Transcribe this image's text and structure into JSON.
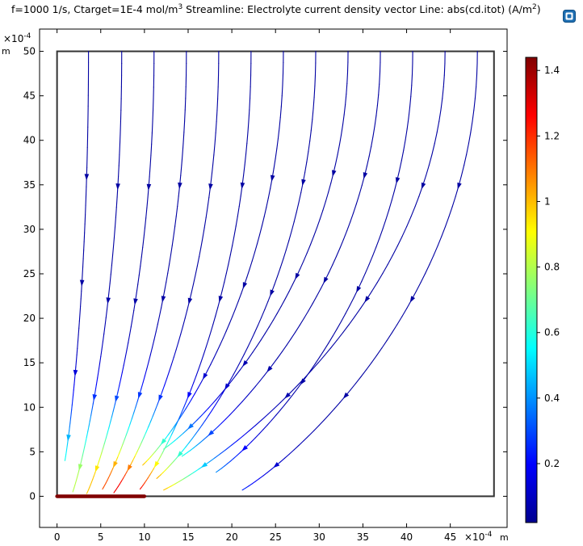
{
  "title": {
    "part1": "f=1000 1/s, Ctarget=1E-4 mol/m",
    "part1_sup": "3",
    "part2": "   Streamline: Electrolyte current density vector  Line: abs(cd.itot) (A/m",
    "part2_sup": "2",
    "part3": ")"
  },
  "logo_icon": "comsol-logo-icon",
  "chart_data": {
    "type": "streamline",
    "x_axis": {
      "ticks": [
        "0",
        "5",
        "10",
        "15",
        "20",
        "25",
        "30",
        "35",
        "40",
        "45"
      ],
      "tick_values": [
        0,
        5,
        10,
        15,
        20,
        25,
        30,
        35,
        40,
        45
      ],
      "range": [
        -2,
        51.5
      ],
      "multiplier": "×10",
      "exponent": "-4",
      "unit": "m"
    },
    "y_axis": {
      "ticks": [
        "0",
        "5",
        "10",
        "15",
        "20",
        "25",
        "30",
        "35",
        "40",
        "45",
        "50"
      ],
      "tick_values": [
        0,
        5,
        10,
        15,
        20,
        25,
        30,
        35,
        40,
        45,
        50
      ],
      "range": [
        -3.5,
        52.5
      ],
      "multiplier": "×10",
      "exponent": "-4",
      "unit": "m"
    },
    "domain": {
      "x": [
        0,
        50
      ],
      "y": [
        0,
        50
      ]
    },
    "electrode": {
      "x": [
        0,
        10
      ],
      "y": 0,
      "color": "#800000"
    },
    "colorbar": {
      "ticks": [
        "0.2",
        "0.4",
        "0.6",
        "0.8",
        "1",
        "1.2",
        "1.4"
      ],
      "tick_values": [
        0.2,
        0.4,
        0.6,
        0.8,
        1.0,
        1.2,
        1.4
      ],
      "range": [
        0.02,
        1.44
      ],
      "colormap": "jet"
    },
    "streamlines": [
      {
        "top_x": 3.6,
        "end": [
          0.9,
          4.0
        ]
      },
      {
        "top_x": 7.4,
        "end": [
          1.8,
          0.5
        ]
      },
      {
        "top_x": 11.1,
        "end": [
          3.4,
          0.3
        ]
      },
      {
        "top_x": 14.8,
        "end": [
          5.2,
          0.8
        ]
      },
      {
        "top_x": 18.5,
        "end": [
          6.5,
          0.4
        ]
      },
      {
        "top_x": 22.2,
        "end": [
          9.5,
          0.8
        ]
      },
      {
        "top_x": 25.9,
        "end": [
          9.8,
          3.5
        ]
      },
      {
        "top_x": 29.6,
        "end": [
          11.4,
          2.0
        ]
      },
      {
        "top_x": 33.3,
        "end": [
          12.2,
          5.3
        ]
      },
      {
        "top_x": 37.0,
        "end": [
          14.3,
          4.5
        ]
      },
      {
        "top_x": 40.7,
        "end": [
          18.2,
          2.7
        ]
      },
      {
        "top_x": 44.4,
        "end": [
          12.2,
          0.7
        ]
      },
      {
        "top_x": 48.1,
        "end": [
          21.2,
          0.7
        ]
      }
    ]
  }
}
